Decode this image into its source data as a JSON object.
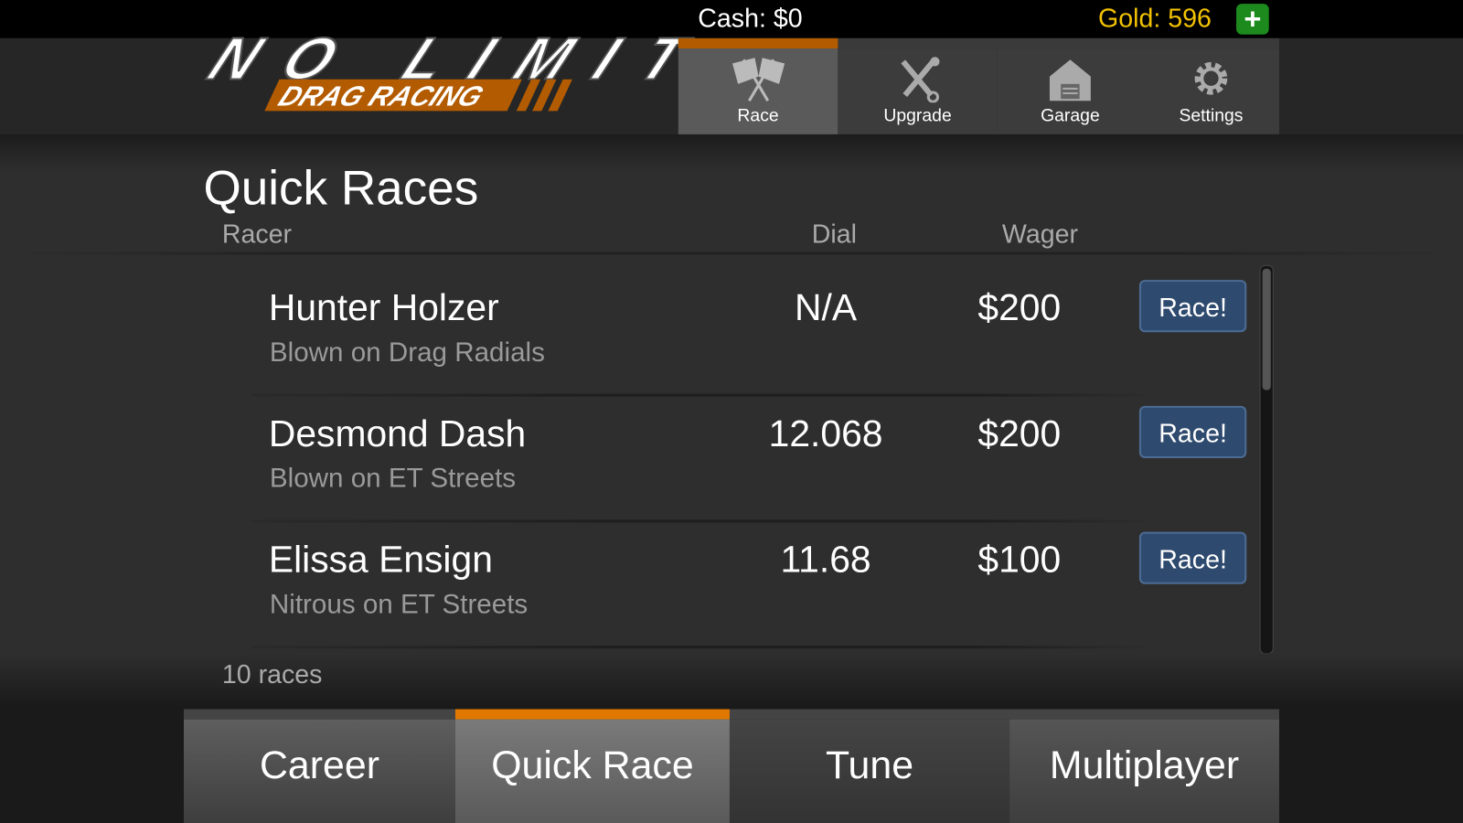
{
  "header": {
    "cash_label": "Cash:  $0",
    "gold_label": "Gold: 596",
    "gold_add_icon": "plus-icon",
    "logo_text": "NO LIMIT DRAG RACING",
    "nav": [
      {
        "label": "Race",
        "icon": "checkered-flags-icon",
        "active": true
      },
      {
        "label": "Upgrade",
        "icon": "wrench-screwdriver-icon",
        "active": false
      },
      {
        "label": "Garage",
        "icon": "garage-icon",
        "active": false
      },
      {
        "label": "Settings",
        "icon": "gear-icon",
        "active": false
      }
    ],
    "accent": "#b35b00"
  },
  "main": {
    "title": "Quick Races",
    "columns": {
      "racer": "Racer",
      "dial": "Dial",
      "wager": "Wager"
    },
    "races": [
      {
        "name": "Hunter Holzer",
        "car": "Blown on Drag Radials",
        "dial": "N/A",
        "wager": "$200",
        "button": "Race!"
      },
      {
        "name": "Desmond Dash",
        "car": "Blown on ET Streets",
        "dial": "12.068",
        "wager": "$200",
        "button": "Race!"
      },
      {
        "name": "Elissa Ensign",
        "car": "Nitrous on ET Streets",
        "dial": "11.68",
        "wager": "$100",
        "button": "Race!"
      }
    ],
    "count": "10 races"
  },
  "bottom_tabs": [
    {
      "label": "Career",
      "active": false
    },
    {
      "label": "Quick Race",
      "active": true
    },
    {
      "label": "Tune",
      "active": false
    },
    {
      "label": "Multiplayer",
      "active": false
    }
  ]
}
